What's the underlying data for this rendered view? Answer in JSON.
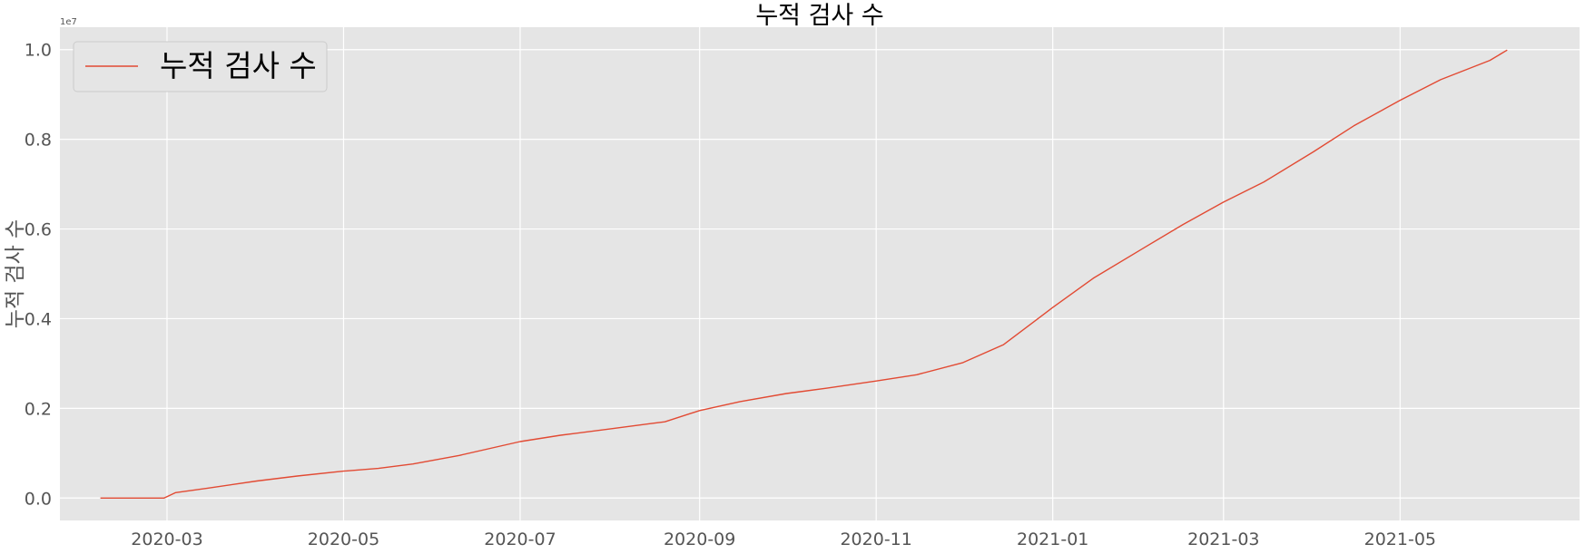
{
  "chart_data": {
    "type": "line",
    "title": "누적 검사 수",
    "xlabel": "",
    "ylabel": "누적 검사 수",
    "y_offset_label": "1e7",
    "x_axis_type": "date",
    "xlim": [
      "2020-01-24",
      "2021-07-02"
    ],
    "ylim": [
      -500000.0,
      10500000.0
    ],
    "y_ticks": [
      0,
      2000000,
      4000000,
      6000000,
      8000000,
      10000000
    ],
    "y_tick_labels": [
      "0.0",
      "0.2",
      "0.4",
      "0.6",
      "0.8",
      "1.0"
    ],
    "x_ticks": [
      "2020-03-01",
      "2020-05-01",
      "2020-07-01",
      "2020-09-01",
      "2020-11-01",
      "2021-01-01",
      "2021-03-01",
      "2021-05-01"
    ],
    "x_tick_labels": [
      "2020-03",
      "2020-05",
      "2020-07",
      "2020-09",
      "2020-11",
      "2021-01",
      "2021-03",
      "2021-05"
    ],
    "grid": true,
    "legend_position": "top-left",
    "series": [
      {
        "name": "누적 검사 수",
        "color": "#E24A33",
        "points": [
          [
            "2020-02-07",
            0
          ],
          [
            "2020-02-29",
            0
          ],
          [
            "2020-03-04",
            120000
          ],
          [
            "2020-03-15",
            220000
          ],
          [
            "2020-04-01",
            380000
          ],
          [
            "2020-04-15",
            490000
          ],
          [
            "2020-05-01",
            600000
          ],
          [
            "2020-05-13",
            660000
          ],
          [
            "2020-05-25",
            760000
          ],
          [
            "2020-06-10",
            950000
          ],
          [
            "2020-07-01",
            1260000
          ],
          [
            "2020-07-15",
            1400000
          ],
          [
            "2020-08-01",
            1540000
          ],
          [
            "2020-08-15",
            1660000
          ],
          [
            "2020-08-20",
            1700000
          ],
          [
            "2020-09-01",
            1950000
          ],
          [
            "2020-09-15",
            2150000
          ],
          [
            "2020-10-01",
            2330000
          ],
          [
            "2020-10-15",
            2450000
          ],
          [
            "2020-11-01",
            2610000
          ],
          [
            "2020-11-15",
            2750000
          ],
          [
            "2020-12-01",
            3020000
          ],
          [
            "2020-12-15",
            3420000
          ],
          [
            "2021-01-01",
            4250000
          ],
          [
            "2021-01-15",
            4900000
          ],
          [
            "2021-02-01",
            5560000
          ],
          [
            "2021-02-15",
            6100000
          ],
          [
            "2021-03-01",
            6600000
          ],
          [
            "2021-03-15",
            7050000
          ],
          [
            "2021-04-01",
            7720000
          ],
          [
            "2021-04-15",
            8300000
          ],
          [
            "2021-05-01",
            8870000
          ],
          [
            "2021-05-15",
            9330000
          ],
          [
            "2021-06-01",
            9760000
          ],
          [
            "2021-06-07",
            9990000
          ]
        ]
      }
    ]
  }
}
